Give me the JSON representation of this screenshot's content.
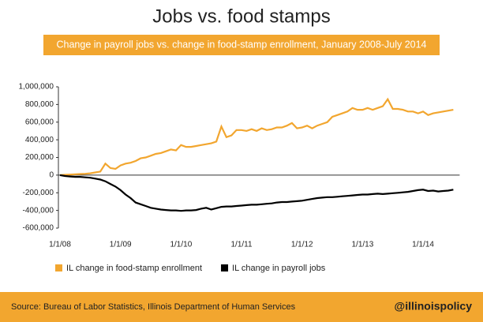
{
  "chart_data": {
    "type": "line",
    "title": "Jobs vs. food stamps",
    "subtitle": "Change in payroll jobs vs. change in food-stamp enrollment, January 2008-July 2014",
    "x": [
      "1/1/08",
      "2/1/08",
      "3/1/08",
      "4/1/08",
      "5/1/08",
      "6/1/08",
      "7/1/08",
      "8/1/08",
      "9/1/08",
      "10/1/08",
      "11/1/08",
      "12/1/08",
      "1/1/09",
      "2/1/09",
      "3/1/09",
      "4/1/09",
      "5/1/09",
      "6/1/09",
      "7/1/09",
      "8/1/09",
      "9/1/09",
      "10/1/09",
      "11/1/09",
      "12/1/09",
      "1/1/10",
      "2/1/10",
      "3/1/10",
      "4/1/10",
      "5/1/10",
      "6/1/10",
      "7/1/10",
      "8/1/10",
      "9/1/10",
      "10/1/10",
      "11/1/10",
      "12/1/10",
      "1/1/11",
      "2/1/11",
      "3/1/11",
      "4/1/11",
      "5/1/11",
      "6/1/11",
      "7/1/11",
      "8/1/11",
      "9/1/11",
      "10/1/11",
      "11/1/11",
      "12/1/11",
      "1/1/12",
      "2/1/12",
      "3/1/12",
      "4/1/12",
      "5/1/12",
      "6/1/12",
      "7/1/12",
      "8/1/12",
      "9/1/12",
      "10/1/12",
      "11/1/12",
      "12/1/12",
      "1/1/13",
      "2/1/13",
      "3/1/13",
      "4/1/13",
      "5/1/13",
      "6/1/13",
      "7/1/13",
      "8/1/13",
      "9/1/13",
      "10/1/13",
      "11/1/13",
      "12/1/13",
      "1/1/14",
      "2/1/14",
      "3/1/14",
      "4/1/14",
      "5/1/14",
      "6/1/14",
      "7/1/14"
    ],
    "xticks": [
      "1/1/08",
      "1/1/09",
      "1/1/10",
      "1/1/11",
      "1/1/12",
      "1/1/13",
      "1/1/14"
    ],
    "series": [
      {
        "name": "IL change in food-stamp enrollment",
        "color": "#f2a62f",
        "values": [
          0,
          3000,
          6000,
          10000,
          12000,
          15000,
          20000,
          30000,
          40000,
          130000,
          80000,
          70000,
          110000,
          130000,
          140000,
          160000,
          190000,
          200000,
          220000,
          240000,
          250000,
          270000,
          290000,
          280000,
          340000,
          320000,
          320000,
          330000,
          340000,
          350000,
          360000,
          380000,
          550000,
          430000,
          450000,
          510000,
          510000,
          500000,
          520000,
          500000,
          530000,
          510000,
          520000,
          540000,
          540000,
          560000,
          590000,
          530000,
          540000,
          560000,
          530000,
          560000,
          580000,
          600000,
          660000,
          680000,
          700000,
          720000,
          760000,
          740000,
          740000,
          760000,
          740000,
          760000,
          780000,
          860000,
          750000,
          750000,
          740000,
          720000,
          720000,
          700000,
          720000,
          680000,
          700000,
          710000,
          720000,
          730000,
          740000
        ]
      },
      {
        "name": "IL change in payroll jobs",
        "color": "#000000",
        "values": [
          0,
          -10000,
          -15000,
          -20000,
          -20000,
          -25000,
          -30000,
          -40000,
          -50000,
          -70000,
          -100000,
          -130000,
          -170000,
          -220000,
          -260000,
          -310000,
          -330000,
          -350000,
          -370000,
          -380000,
          -390000,
          -395000,
          -400000,
          -400000,
          -405000,
          -400000,
          -400000,
          -395000,
          -380000,
          -370000,
          -390000,
          -375000,
          -360000,
          -355000,
          -355000,
          -350000,
          -345000,
          -340000,
          -335000,
          -335000,
          -330000,
          -325000,
          -320000,
          -310000,
          -305000,
          -305000,
          -300000,
          -295000,
          -290000,
          -280000,
          -270000,
          -260000,
          -255000,
          -250000,
          -250000,
          -245000,
          -240000,
          -235000,
          -230000,
          -225000,
          -220000,
          -220000,
          -215000,
          -210000,
          -215000,
          -210000,
          -205000,
          -200000,
          -195000,
          -190000,
          -180000,
          -170000,
          -165000,
          -180000,
          -175000,
          -185000,
          -180000,
          -175000,
          -165000
        ]
      }
    ],
    "ylim": [
      -600000,
      1000000
    ],
    "yticks": [
      {
        "value": -600000,
        "label": "-600,000"
      },
      {
        "value": -400000,
        "label": "-400,000"
      },
      {
        "value": -200000,
        "label": "-200,000"
      },
      0,
      {
        "value": 200000,
        "label": "200,000"
      },
      {
        "value": 400000,
        "label": "400,000"
      },
      {
        "value": 600000,
        "label": "600,000"
      },
      {
        "value": 800000,
        "label": "800,000"
      },
      {
        "value": 1000000,
        "label": "1,000,000"
      }
    ],
    "grid": false,
    "legend": "bottom-left"
  },
  "footer": {
    "source": "Source: Bureau of Labor Statistics, Illinois Department of Human Services",
    "handle": "@illinoispolicy"
  }
}
